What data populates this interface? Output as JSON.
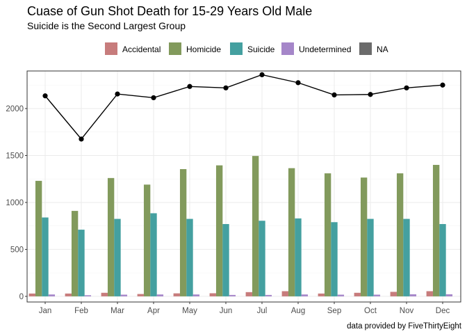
{
  "chart_data": {
    "type": "bar",
    "title": "Cuase of Gun Shot Death for 15-29 Years Old Male",
    "subtitle": "Suicide is the Second Largest Group",
    "caption": "data provided by FiveThirtyEight",
    "xlabel": "",
    "ylabel": "",
    "ylim": [
      -60,
      2400
    ],
    "yticks": [
      0,
      500,
      1000,
      1500,
      2000
    ],
    "grid": true,
    "legend_position": "top",
    "categories": [
      "Jan",
      "Feb",
      "Mar",
      "Apr",
      "May",
      "Jun",
      "Jul",
      "Aug",
      "Sep",
      "Oct",
      "Nov",
      "Dec"
    ],
    "series": [
      {
        "name": "Accidental",
        "color": "#C77C7C",
        "values": [
          30,
          30,
          38,
          25,
          32,
          33,
          45,
          55,
          30,
          38,
          48,
          55
        ]
      },
      {
        "name": "Homicide",
        "color": "#829A5C",
        "values": [
          1230,
          910,
          1260,
          1190,
          1355,
          1395,
          1495,
          1365,
          1310,
          1265,
          1310,
          1400
        ]
      },
      {
        "name": "Suicide",
        "color": "#44A0A0",
        "values": [
          840,
          710,
          825,
          885,
          825,
          770,
          805,
          830,
          790,
          825,
          825,
          770
        ]
      },
      {
        "name": "Undetermined",
        "color": "#A586C9",
        "values": [
          20,
          12,
          18,
          20,
          20,
          15,
          15,
          20,
          18,
          18,
          22,
          22
        ]
      },
      {
        "name": "NA",
        "color": "#6B6B6B",
        "values": [
          0,
          0,
          0,
          0,
          0,
          0,
          0,
          0,
          0,
          0,
          0,
          0
        ]
      }
    ],
    "total_line": {
      "name": "Total",
      "color": "#000000",
      "values": [
        2135,
        1675,
        2155,
        2115,
        2235,
        2220,
        2360,
        2275,
        2145,
        2150,
        2220,
        2250
      ]
    }
  }
}
